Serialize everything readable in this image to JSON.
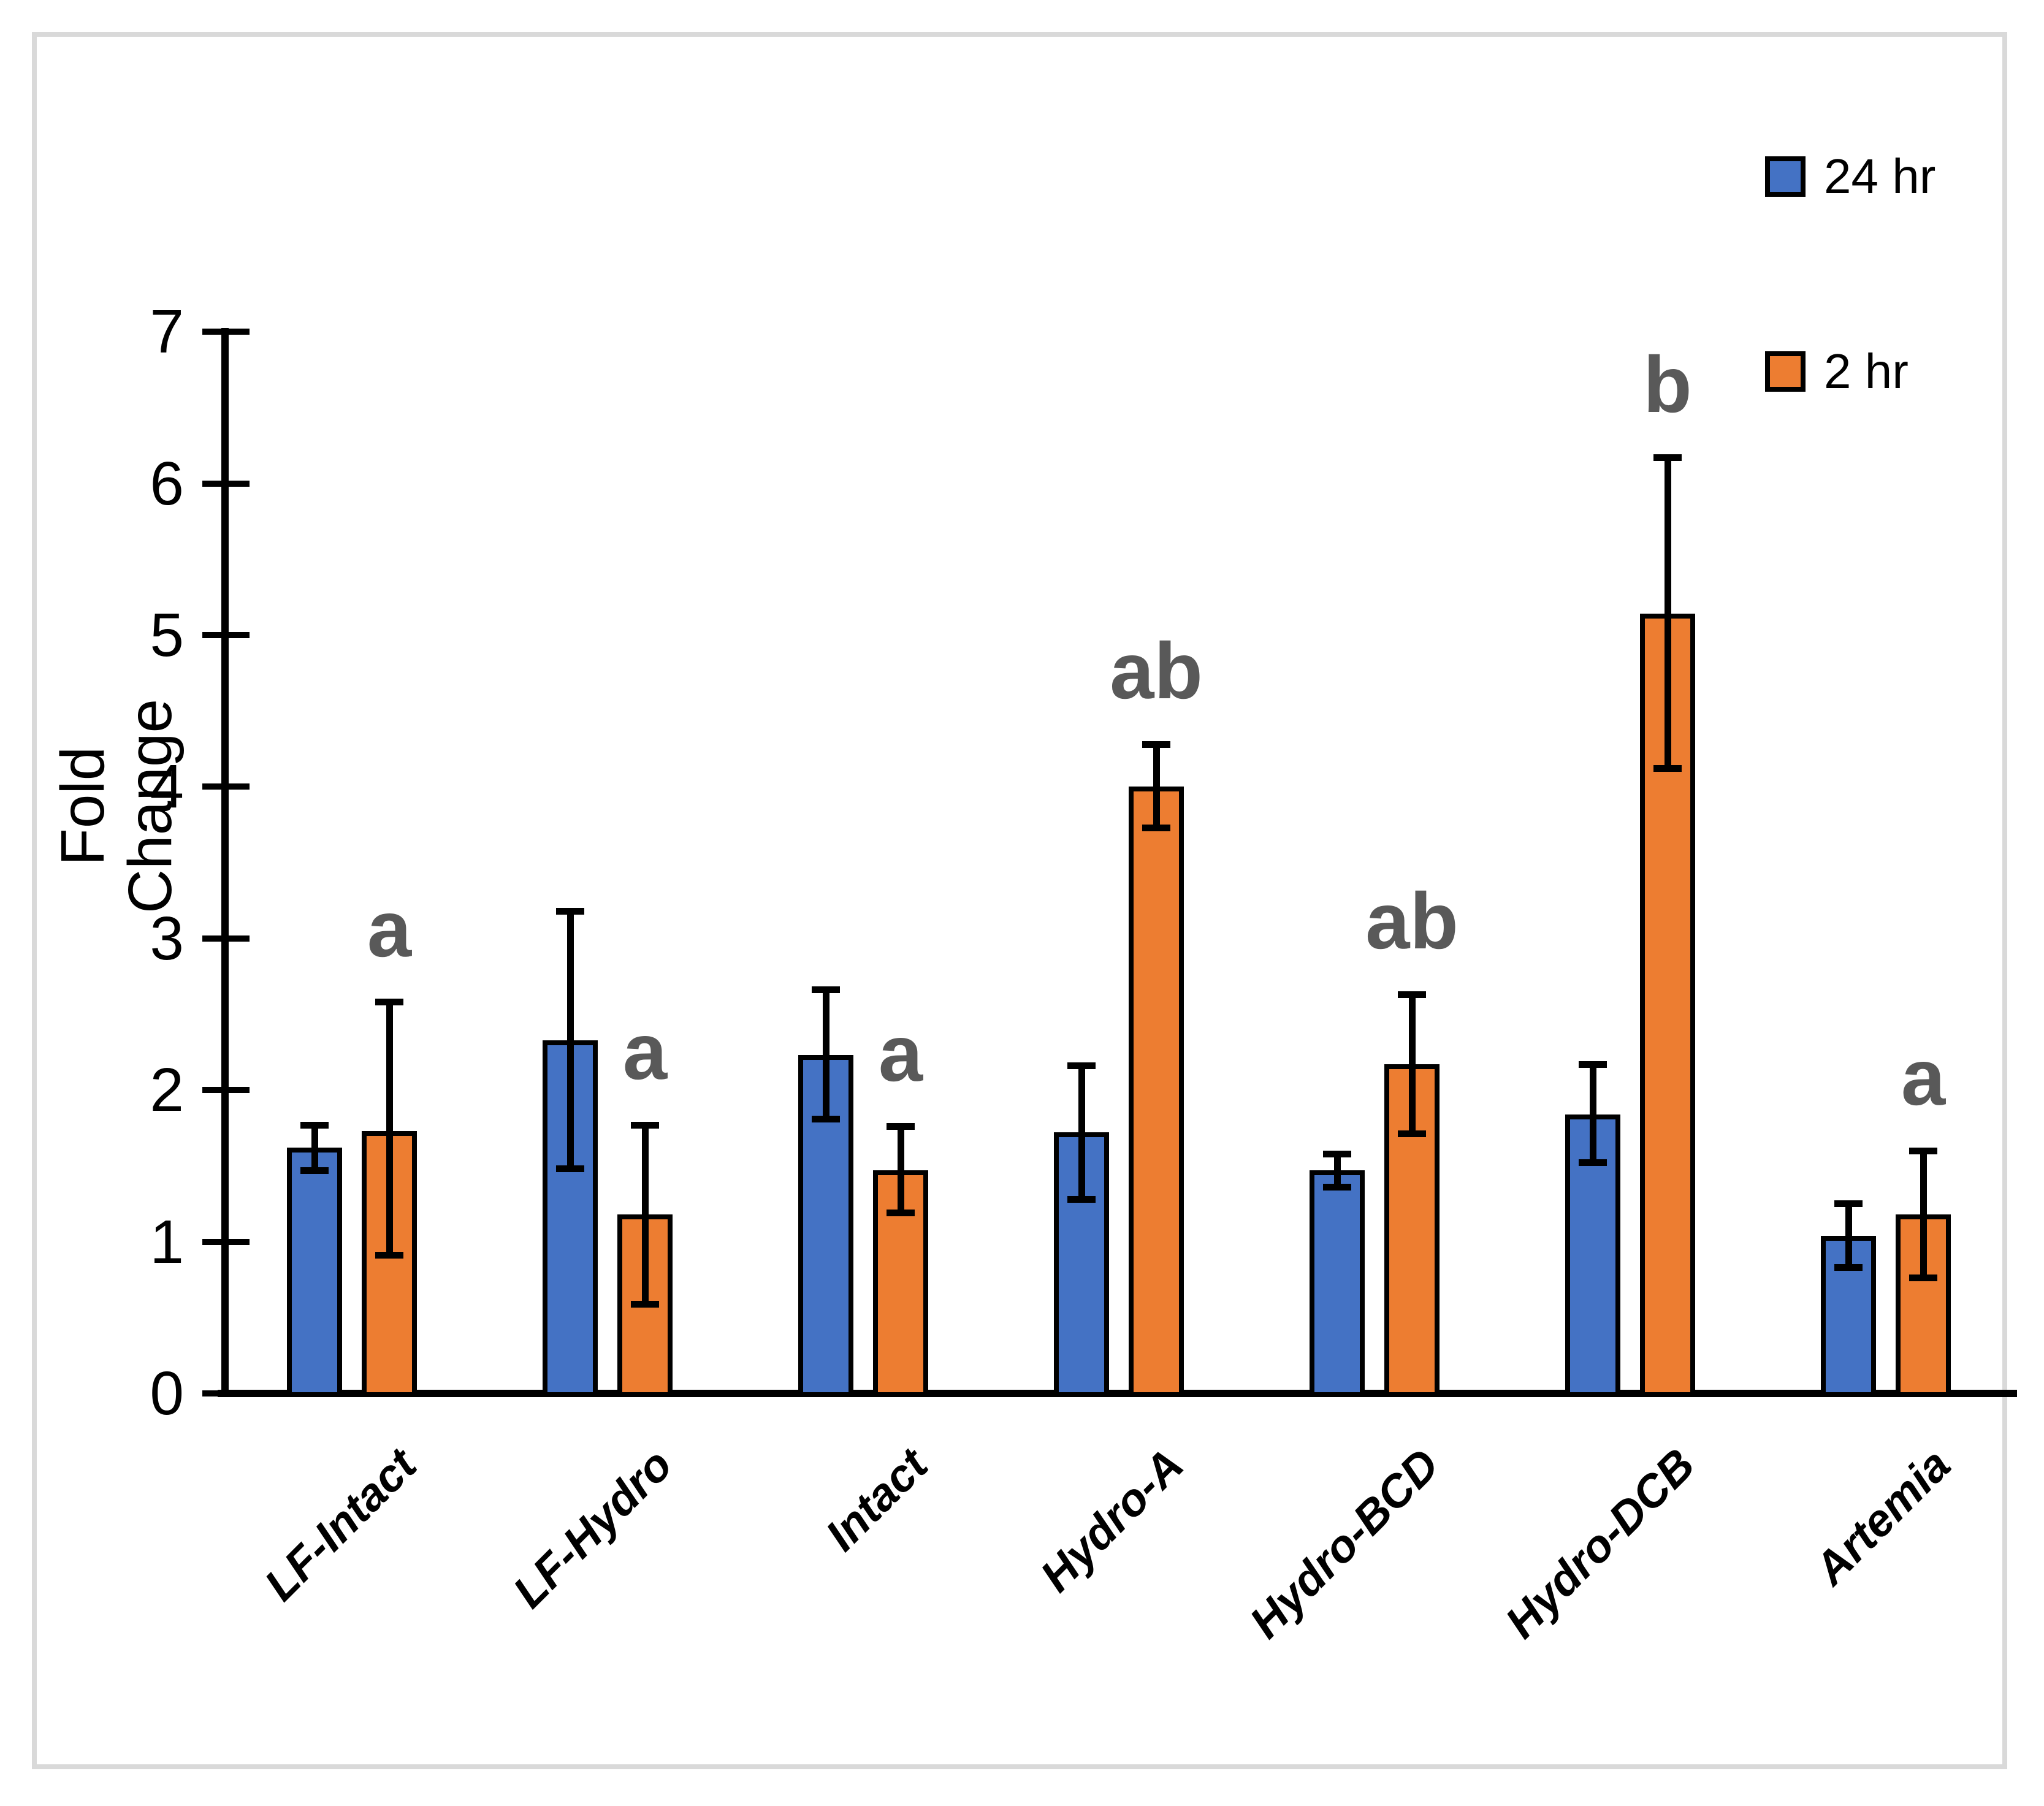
{
  "figure": {
    "background": "#FFFFFF",
    "frame_color": "#D9D9D9",
    "axis_color": "#000000"
  },
  "legend": {
    "position": "top-right",
    "items": [
      {
        "label": "24 hr",
        "color": "#4472C4",
        "swatch": "blue-square-icon"
      },
      {
        "label": "2 hr",
        "color": "#ED7D31",
        "swatch": "orange-square-icon"
      }
    ]
  },
  "chart_data": {
    "type": "bar",
    "title": "",
    "xlabel": "",
    "ylabel": "Fold Change",
    "ylim": [
      0,
      7
    ],
    "ytick_step": 1,
    "ytick_labels": [
      "0",
      "1",
      "2",
      "3",
      "4",
      "5",
      "6",
      "7"
    ],
    "grid": false,
    "legend_position": "top-right",
    "categories": [
      "LF-Intact",
      "LF-Hydro",
      "Intact",
      "Hydro-A",
      "Hydro-BCD",
      "Hydro-DCB",
      "Artemia"
    ],
    "series": [
      {
        "name": "24 hr",
        "color": "#4472C4",
        "values": [
          1.62,
          2.33,
          2.23,
          1.72,
          1.47,
          1.84,
          1.04
        ],
        "err_plus": [
          0.15,
          0.85,
          0.43,
          0.44,
          0.11,
          0.33,
          0.21
        ],
        "err_minus": [
          0.15,
          0.85,
          0.42,
          0.44,
          0.11,
          0.32,
          0.21
        ]
      },
      {
        "name": "2 hr",
        "color": "#ED7D31",
        "values": [
          1.73,
          1.18,
          1.47,
          4.0,
          2.17,
          5.14,
          1.18
        ],
        "err_plus": [
          0.85,
          0.59,
          0.29,
          0.28,
          0.46,
          1.03,
          0.42
        ],
        "err_minus": [
          0.82,
          0.59,
          0.28,
          0.27,
          0.46,
          1.02,
          0.42
        ]
      }
    ],
    "significance_letters": {
      "applies_to_series": "2 hr",
      "labels": [
        "a",
        "a",
        "a",
        "ab",
        "ab",
        "b",
        "a"
      ],
      "color": "#595959"
    }
  }
}
